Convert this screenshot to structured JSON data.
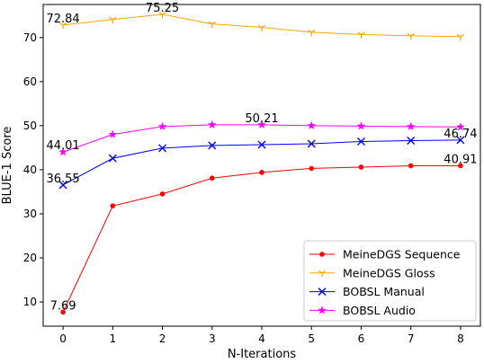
{
  "chart_data": {
    "type": "line",
    "xlabel": "N-Iterations",
    "ylabel": "BLUE-1 Score",
    "x": [
      0,
      1,
      2,
      3,
      4,
      5,
      6,
      7,
      8
    ],
    "xlim": [
      -0.4,
      8.4
    ],
    "ylim": [
      4.5,
      77.5
    ],
    "xticks": [
      "0",
      "1",
      "2",
      "3",
      "4",
      "5",
      "6",
      "7",
      "8"
    ],
    "yticks": [
      {
        "value": 10,
        "label": "10"
      },
      {
        "value": 20,
        "label": "20"
      },
      {
        "value": 30,
        "label": "30"
      },
      {
        "value": 40,
        "label": "40"
      },
      {
        "value": 50,
        "label": "50"
      },
      {
        "value": 60,
        "label": "60"
      },
      {
        "value": 70,
        "label": "70"
      }
    ],
    "grid": false,
    "legend_position": "lower-right",
    "series": [
      {
        "name": "MeineDGS Sequence",
        "color": "#ff0000",
        "marker": "dot",
        "values": [
          7.69,
          31.8,
          34.5,
          38.1,
          39.4,
          40.3,
          40.6,
          40.9,
          40.91
        ]
      },
      {
        "name": "MeineDGS Gloss",
        "color": "#ffa500",
        "marker": "tri",
        "values": [
          72.84,
          74.1,
          75.25,
          73.1,
          72.3,
          71.2,
          70.7,
          70.4,
          70.2
        ]
      },
      {
        "name": "BOBSL Manual",
        "color": "#0000ff",
        "marker": "x",
        "values": [
          36.55,
          42.6,
          44.9,
          45.5,
          45.7,
          45.9,
          46.4,
          46.6,
          46.74
        ]
      },
      {
        "name": "BOBSL Audio",
        "color": "#ff00ff",
        "marker": "star",
        "values": [
          44.01,
          48.0,
          49.8,
          50.21,
          50.21,
          50.0,
          49.9,
          49.8,
          49.7
        ]
      }
    ],
    "annotations": [
      {
        "text": "72.84",
        "x": 0,
        "y": 72.84
      },
      {
        "text": "75.25",
        "x": 2,
        "y": 75.25
      },
      {
        "text": "50.21",
        "x": 4,
        "y": 50.21
      },
      {
        "text": "44.01",
        "x": 0,
        "y": 44.01
      },
      {
        "text": "36.55",
        "x": 0,
        "y": 36.55
      },
      {
        "text": "46.74",
        "x": 8,
        "y": 46.74
      },
      {
        "text": "40.91",
        "x": 8,
        "y": 40.91
      },
      {
        "text": "7.69",
        "x": 0,
        "y": 7.69
      }
    ]
  }
}
